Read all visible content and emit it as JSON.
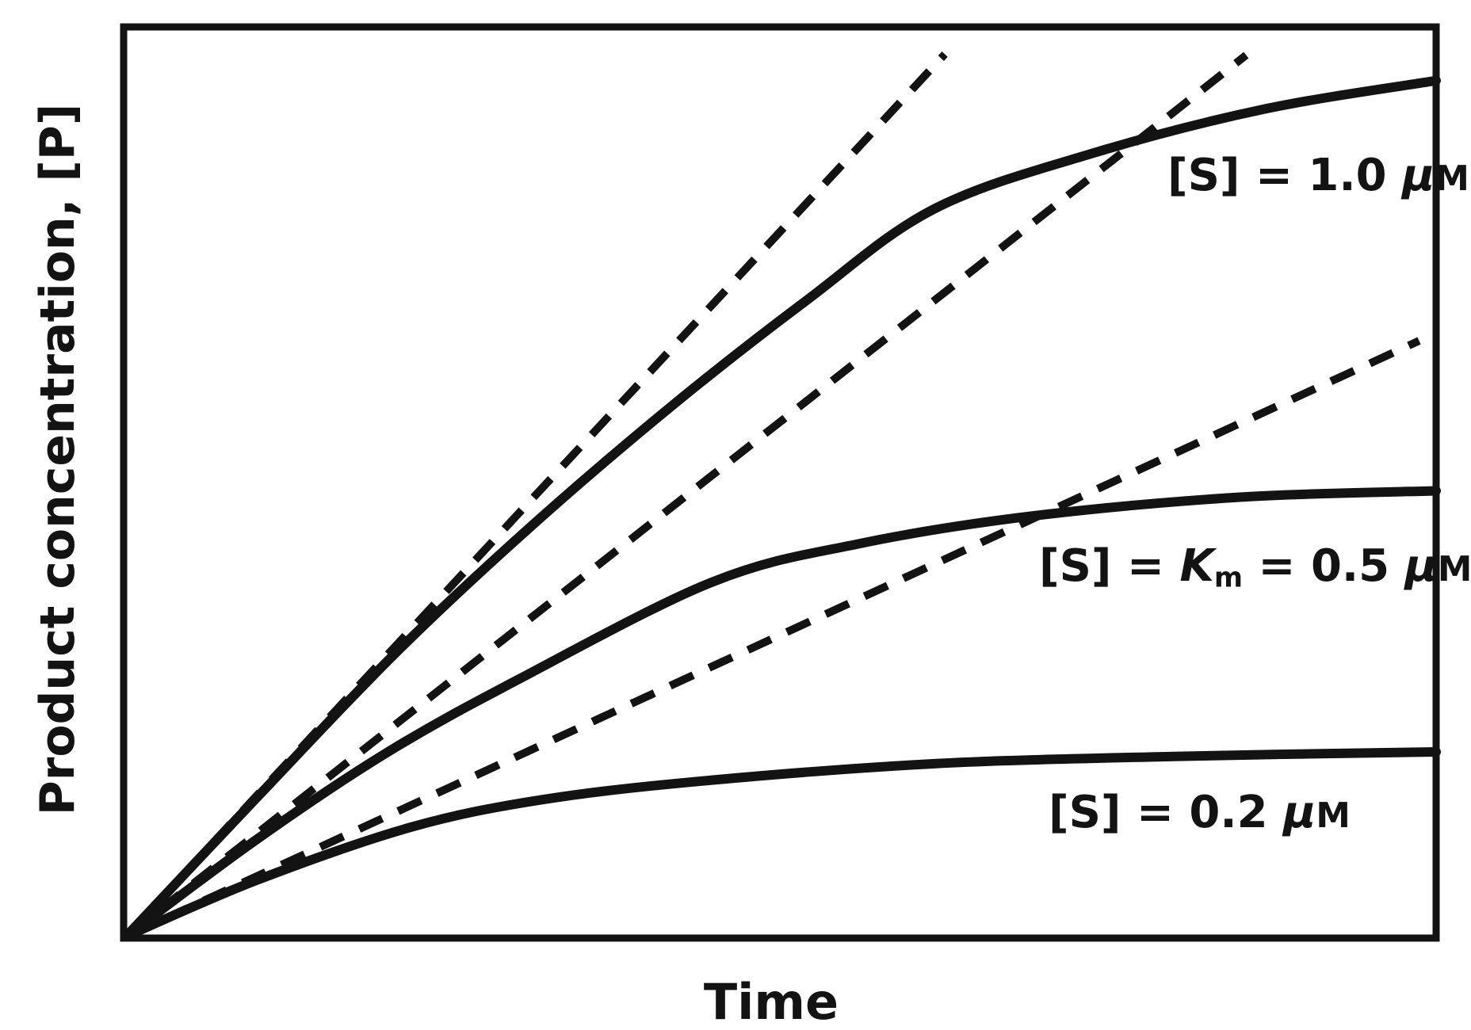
{
  "figure": {
    "background": "#ffffff",
    "ink": "#131313"
  },
  "chart_data": {
    "type": "line",
    "title": "",
    "xlabel": "Time",
    "ylabel": "Product concentration, [P]",
    "x_ticks": [],
    "y_ticks": [],
    "grid": false,
    "frame": true,
    "axis_units": "arbitrary (no numeric scale shown)",
    "description": "Enzyme kinetics progress curves: product concentration [P] versus time for three substrate concentrations; dashed lines are the initial-velocity tangents drawn from the origin for each curve.",
    "series": [
      {
        "id": "s10",
        "name": "[S] = 1.0 uM",
        "line": "solid",
        "relative_initial_velocity": 1.0,
        "points": [
          [
            0,
            0
          ],
          [
            0.1,
            0.153
          ],
          [
            0.206,
            0.312
          ],
          [
            0.31,
            0.452
          ],
          [
            0.418,
            0.585
          ],
          [
            0.52,
            0.7
          ],
          [
            0.617,
            0.8
          ],
          [
            0.74,
            0.862
          ],
          [
            0.87,
            0.91
          ],
          [
            1,
            0.941
          ]
        ]
      },
      {
        "id": "s05",
        "name": "[S] = Km = 0.5 uM",
        "line": "solid",
        "relative_initial_velocity": 0.73,
        "points": [
          [
            0,
            0
          ],
          [
            0.1,
            0.107
          ],
          [
            0.2,
            0.203
          ],
          [
            0.3,
            0.283
          ],
          [
            0.448,
            0.39
          ],
          [
            0.56,
            0.432
          ],
          [
            0.69,
            0.462
          ],
          [
            0.85,
            0.483
          ],
          [
            1,
            0.49
          ]
        ]
      },
      {
        "id": "s02",
        "name": "[S] = 0.2 uM",
        "line": "solid",
        "relative_initial_velocity": 0.43,
        "points": [
          [
            0,
            0
          ],
          [
            0.1,
            0.062
          ],
          [
            0.217,
            0.12
          ],
          [
            0.32,
            0.151
          ],
          [
            0.448,
            0.172
          ],
          [
            0.617,
            0.19
          ],
          [
            0.8,
            0.198
          ],
          [
            1,
            0.203
          ]
        ]
      }
    ],
    "tangents": [
      {
        "id": "t10",
        "series": "s10",
        "line": "dashed",
        "from": [
          0,
          0
        ],
        "to": [
          0.625,
          0.97
        ]
      },
      {
        "id": "t05",
        "series": "s05",
        "line": "dashed",
        "from": [
          0,
          0
        ],
        "to": [
          0.855,
          0.969
        ]
      },
      {
        "id": "t02",
        "series": "s02",
        "line": "dashed",
        "from": [
          0,
          0
        ],
        "to": [
          0.987,
          0.655
        ]
      }
    ],
    "annotations": [
      {
        "id": "s10",
        "anchor": [
          0.795,
          0.821
        ],
        "parts": [
          {
            "t": "[S] = 1.0 "
          },
          {
            "t": "μ",
            "style": "italic"
          },
          {
            "t": "M",
            "style": "small"
          }
        ]
      },
      {
        "id": "s05",
        "anchor": [
          0.697,
          0.392
        ],
        "parts": [
          {
            "t": "[S] = "
          },
          {
            "t": "K",
            "style": "italic"
          },
          {
            "t": "m",
            "style": "sub"
          },
          {
            "t": " = 0.5 "
          },
          {
            "t": "μ",
            "style": "italic"
          },
          {
            "t": "M",
            "style": "small"
          }
        ]
      },
      {
        "id": "s02",
        "anchor": [
          0.704,
          0.121
        ],
        "parts": [
          {
            "t": "[S] = 0.2 "
          },
          {
            "t": "μ",
            "style": "italic"
          },
          {
            "t": "M",
            "style": "small"
          }
        ]
      }
    ]
  }
}
